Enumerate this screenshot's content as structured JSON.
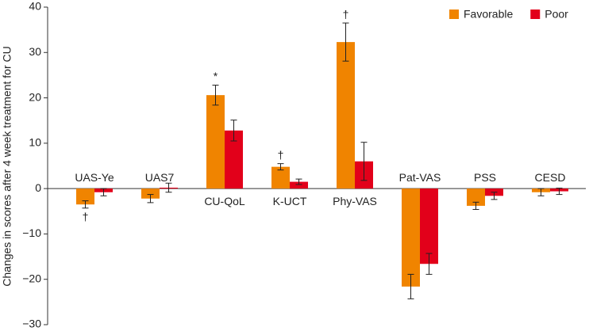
{
  "chart_data": {
    "type": "bar",
    "ylabel": "Changes in scores after 4 week treatment for CU",
    "categories": [
      "UAS-Ye",
      "UAS7",
      "CU-QoL",
      "K-UCT",
      "Phy-VAS",
      "Pat-VAS",
      "PSS",
      "CESD"
    ],
    "series": [
      {
        "name": "Favorable",
        "color": "#f08400",
        "values": [
          -3.5,
          -2.2,
          20.6,
          4.8,
          32.3,
          -21.6,
          -3.8,
          -0.8
        ],
        "errors": [
          0.8,
          0.9,
          2.2,
          0.7,
          4.2,
          2.7,
          0.8,
          0.8
        ],
        "annotations": [
          "†",
          null,
          "*",
          "†",
          "†",
          null,
          null,
          null
        ]
      },
      {
        "name": "Poor",
        "color": "#e2001a",
        "values": [
          -0.8,
          0.2,
          12.8,
          1.5,
          6.0,
          -16.6,
          -1.6,
          -0.6
        ],
        "errors": [
          0.8,
          1.0,
          2.3,
          0.6,
          4.2,
          2.3,
          0.8,
          0.7
        ]
      }
    ],
    "ylim": [
      -30,
      40
    ],
    "yticks": [
      {
        "value": -30,
        "label": "−30"
      },
      {
        "value": -20,
        "label": "−20"
      },
      {
        "value": -10,
        "label": "−10"
      },
      0,
      10,
      20,
      30,
      40
    ],
    "legend": "top-right"
  }
}
